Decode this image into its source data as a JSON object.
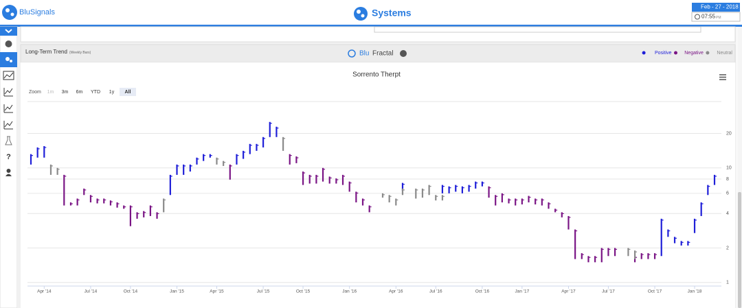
{
  "header": {
    "logo_text": "BluSignals",
    "title": "Systems",
    "date": "Feb - 27 - 2018",
    "time": "07:55",
    "time_suffix": "PM"
  },
  "sidebar": {
    "help": "?"
  },
  "panel": {
    "title": "Long-Term Trend",
    "subtitle": "(Weekly Bars)",
    "brand_blu": "Blu",
    "brand_fractal": "Fractal",
    "zoom_label": "Zoom",
    "zoom_buttons": [
      "1m",
      "3m",
      "6m",
      "YTD",
      "1y",
      "All"
    ]
  },
  "chart_data": {
    "type": "ohlc",
    "title": "Sorrento Therpt",
    "categories": [
      null,
      null,
      "Apr '14",
      null,
      null,
      null,
      null,
      null,
      null,
      "Jul '14",
      null,
      null,
      null,
      null,
      null,
      "Oct '14",
      null,
      null,
      null,
      null,
      null,
      null,
      "Jan '15",
      null,
      null,
      null,
      null,
      null,
      "Apr '15",
      null,
      null,
      null,
      null,
      null,
      null,
      "Jul '15",
      null,
      null,
      null,
      null,
      null,
      "Oct '15",
      null,
      null,
      null,
      null,
      null,
      null,
      "Jan '16",
      null,
      null,
      null,
      null,
      null,
      null,
      "Apr '16",
      null,
      null,
      null,
      null,
      null,
      "Jul '16",
      null,
      null,
      null,
      null,
      null,
      null,
      "Oct '16",
      null,
      null,
      null,
      null,
      null,
      "Jan '17",
      null,
      null,
      null,
      null,
      null,
      null,
      "Apr '17",
      null,
      null,
      null,
      null,
      null,
      "Jul '17",
      null,
      null,
      null,
      null,
      null,
      null,
      "Oct '17",
      null,
      null,
      null,
      null,
      null,
      "Jan '18",
      null,
      null,
      null
    ],
    "series": [
      {
        "name": "Positive",
        "color": "#1f1fd8",
        "values": [
          [
            10.7,
            13.2
          ],
          [
            12.3,
            15.1
          ],
          [
            12.3,
            15.5
          ],
          null,
          null,
          null,
          null,
          null,
          null,
          null,
          null,
          null,
          null,
          null,
          null,
          null,
          null,
          null,
          null,
          null,
          null,
          [
            5.8,
            8.7
          ],
          [
            8.7,
            10.7
          ],
          [
            8.7,
            10.7
          ],
          [
            9.3,
            10.7
          ],
          [
            10.7,
            12.3
          ],
          [
            11.5,
            13.2
          ],
          [
            12.3,
            13.2
          ],
          null,
          null,
          null,
          [
            10.7,
            13.2
          ],
          [
            12.0,
            14.1
          ],
          [
            13.2,
            16.2
          ],
          [
            14.1,
            16.2
          ],
          [
            15.1,
            18.6
          ],
          [
            18.6,
            25.2
          ],
          [
            18.6,
            22.9
          ],
          null,
          null,
          null,
          null,
          null,
          null,
          null,
          null,
          null,
          null,
          null,
          null,
          null,
          null,
          null,
          null,
          null,
          null,
          [
            6.3,
            7.4
          ],
          null,
          null,
          null,
          null,
          null,
          [
            6.0,
            7.1
          ],
          [
            6.0,
            6.9
          ],
          [
            6.2,
            7.1
          ],
          [
            6.0,
            6.9
          ],
          [
            6.2,
            7.1
          ],
          [
            6.6,
            7.6
          ],
          [
            6.9,
            7.6
          ],
          null,
          null,
          null,
          null,
          null,
          null,
          null,
          null,
          null,
          null,
          null,
          null,
          null,
          null,
          null,
          null,
          null,
          null,
          null,
          null,
          null,
          null,
          null,
          null,
          null,
          null,
          [
            1.7,
            3.6
          ],
          [
            2.5,
            2.9
          ],
          [
            2.2,
            2.5
          ],
          [
            2.1,
            2.3
          ],
          [
            2.1,
            2.3
          ],
          [
            2.7,
            3.6
          ],
          [
            3.8,
            5.0
          ],
          [
            5.8,
            7.1
          ],
          [
            7.1,
            8.7
          ]
        ]
      },
      {
        "name": "Negative",
        "color": "#7a1585",
        "values": [
          null,
          null,
          null,
          null,
          null,
          [
            4.7,
            8.7
          ],
          [
            4.7,
            5.0
          ],
          [
            4.7,
            5.4
          ],
          [
            5.8,
            6.6
          ],
          [
            5.0,
            5.8
          ],
          [
            4.9,
            5.4
          ],
          [
            4.9,
            5.4
          ],
          [
            4.7,
            5.2
          ],
          [
            4.5,
            5.0
          ],
          [
            4.4,
            4.7
          ],
          [
            3.1,
            4.7
          ],
          [
            3.6,
            4.1
          ],
          [
            3.7,
            4.2
          ],
          [
            3.8,
            4.7
          ],
          [
            3.6,
            4.1
          ],
          null,
          null,
          null,
          null,
          null,
          null,
          null,
          null,
          null,
          null,
          [
            7.9,
            10.7
          ],
          null,
          null,
          null,
          null,
          null,
          null,
          null,
          null,
          [
            10.7,
            13.2
          ],
          [
            11.0,
            12.6
          ],
          [
            7.1,
            9.3
          ],
          [
            7.3,
            8.7
          ],
          [
            7.3,
            8.7
          ],
          [
            7.6,
            10.0
          ],
          [
            7.3,
            8.4
          ],
          [
            7.3,
            8.1
          ],
          [
            7.1,
            8.7
          ],
          [
            6.2,
            7.6
          ],
          [
            5.0,
            6.2
          ],
          [
            4.7,
            5.4
          ],
          [
            4.1,
            4.7
          ],
          null,
          null,
          null,
          null,
          null,
          null,
          null,
          null,
          null,
          null,
          null,
          null,
          null,
          null,
          null,
          null,
          null,
          [
            5.5,
            6.9
          ],
          [
            4.7,
            5.8
          ],
          [
            5.0,
            6.0
          ],
          [
            4.9,
            5.4
          ],
          [
            4.7,
            5.4
          ],
          [
            4.8,
            5.4
          ],
          [
            5.0,
            5.7
          ],
          [
            4.8,
            5.4
          ],
          [
            4.7,
            5.4
          ],
          [
            4.4,
            5.0
          ],
          [
            4.1,
            4.4
          ],
          [
            3.7,
            4.1
          ],
          [
            2.9,
            3.8
          ],
          [
            1.6,
            2.9
          ],
          [
            1.6,
            1.8
          ],
          [
            1.5,
            1.7
          ],
          [
            1.5,
            1.7
          ],
          [
            1.5,
            2.0
          ],
          [
            1.7,
            2.0
          ],
          [
            1.7,
            2.0
          ],
          null,
          null,
          [
            1.5,
            1.7
          ],
          [
            1.6,
            1.8
          ],
          [
            1.6,
            1.8
          ],
          [
            1.6,
            1.8
          ],
          null,
          null,
          null,
          null,
          null,
          null,
          null,
          null,
          null
        ]
      },
      {
        "name": "Neutral",
        "color": "#8a8a8a",
        "values": [
          null,
          null,
          null,
          [
            8.7,
            10.7
          ],
          [
            8.7,
            10.0
          ],
          null,
          null,
          null,
          null,
          null,
          null,
          null,
          null,
          null,
          null,
          null,
          null,
          null,
          null,
          null,
          [
            4.1,
            5.4
          ],
          null,
          null,
          null,
          null,
          null,
          null,
          null,
          [
            10.7,
            12.3
          ],
          [
            10.4,
            11.5
          ],
          null,
          null,
          null,
          null,
          null,
          null,
          null,
          null,
          [
            14.1,
            18.6
          ],
          null,
          null,
          null,
          null,
          null,
          null,
          null,
          null,
          null,
          null,
          null,
          null,
          null,
          null,
          [
            5.5,
            6.0
          ],
          [
            5.0,
            5.8
          ],
          [
            4.7,
            5.4
          ],
          [
            5.8,
            6.6
          ],
          null,
          [
            5.4,
            6.6
          ],
          [
            5.5,
            6.6
          ],
          [
            5.8,
            7.1
          ],
          [
            5.2,
            5.8
          ],
          [
            5.2,
            5.8
          ],
          null,
          null,
          null,
          null,
          null,
          null,
          null,
          null,
          null,
          null,
          null,
          null,
          null,
          null,
          null,
          null,
          null,
          null,
          null,
          null,
          null,
          null,
          null,
          null,
          null,
          null,
          null,
          [
            1.7,
            2.0
          ],
          [
            1.6,
            1.9
          ],
          null,
          null,
          null,
          null,
          null,
          null,
          null,
          null,
          null,
          null,
          null,
          null,
          null
        ]
      }
    ],
    "ylim": [
      0.93,
      38
    ],
    "yticks": [
      1,
      2,
      4,
      6,
      8,
      10,
      20
    ],
    "log_y": true,
    "grid": true,
    "legend_position": "top-right"
  }
}
